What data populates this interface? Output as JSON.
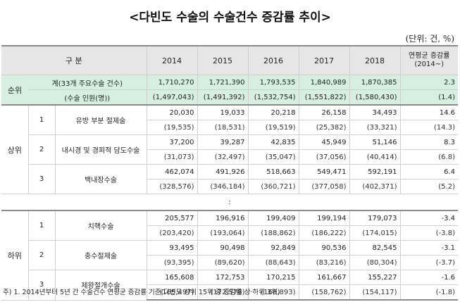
{
  "title": "<다빈도 수술의 수술건수 증감률 추이>",
  "unit": "(단위: 건, %)",
  "header": {
    "category": "구 분",
    "years": [
      "2014",
      "2015",
      "2016",
      "2017",
      "2018"
    ],
    "avg_line1": "연평균 증감률",
    "avg_line2": "(2014~)"
  },
  "total": {
    "rank_label": "순위",
    "row1": {
      "name": "계(33개 주요수술 건수)",
      "values": [
        "1,710,270",
        "1,721,390",
        "1,793,535",
        "1,840,989",
        "1,870,385"
      ],
      "avg": "2.3"
    },
    "row2": {
      "name": "(수술 인원(명))",
      "values": [
        "(1,497,043)",
        "(1,491,392)",
        "(1,532,754)",
        "(1,551,822)",
        "(1,580,430)"
      ],
      "avg": "(1.4)"
    }
  },
  "upper": {
    "group": "상위",
    "rows": [
      {
        "rank": "1",
        "name": "유방 부분 절제술",
        "values": [
          "20,030",
          "19,033",
          "20,218",
          "26,158",
          "34,493"
        ],
        "avg": "14.6",
        "sub_values": [
          "(19,535)",
          "(18,531)",
          "(19,519)",
          "(25,382)",
          "(33,321)"
        ],
        "sub_avg": "(14.3)"
      },
      {
        "rank": "2",
        "name": "내시경 및 경피적 담도수술",
        "values": [
          "37,200",
          "39,287",
          "42,835",
          "45,949",
          "51,146"
        ],
        "avg": "8.3",
        "sub_values": [
          "(31,073)",
          "(32,497)",
          "(35,047)",
          "(37,056)",
          "(40,414)"
        ],
        "sub_avg": "(6.8)"
      },
      {
        "rank": "3",
        "name": "백내장수술",
        "values": [
          "462,074",
          "491,926",
          "518,663",
          "549,471",
          "592,191"
        ],
        "avg": "6.4",
        "sub_values": [
          "(328,576)",
          "(346,184)",
          "(360,721)",
          "(377,058)",
          "(402,371)"
        ],
        "sub_avg": "(5.2)"
      }
    ]
  },
  "gap_mark": ":",
  "lower": {
    "group": "하위",
    "rows": [
      {
        "rank": "1",
        "name": "치핵수술",
        "values": [
          "205,577",
          "196,916",
          "199,409",
          "199,194",
          "179,073"
        ],
        "avg": "-3.4",
        "sub_values": [
          "(203,420)",
          "(193,064)",
          "(188,862)",
          "(186,222)",
          "(174,015)"
        ],
        "sub_avg": "(-3.8)"
      },
      {
        "rank": "2",
        "name": "충수절제술",
        "values": [
          "93,495",
          "90,498",
          "92,849",
          "90,536",
          "82,545"
        ],
        "avg": "-3.1",
        "sub_values": [
          "(93,395)",
          "(89,620)",
          "(88,643)",
          "(83,216)",
          "(80,304)"
        ],
        "sub_avg": "(-3.7)"
      },
      {
        "rank": "3",
        "name": "제왕절개수술",
        "values": [
          "165,608",
          "172,753",
          "170,215",
          "161,667",
          "155,227"
        ],
        "avg": "-1.6",
        "sub_values": [
          "(165,497)",
          "(172,578)",
          "(168,893)",
          "(158,762)",
          "(154,117)"
        ],
        "sub_avg": "(-1.8)"
      }
    ]
  },
  "footnote": "주) 1. 2014년부터 5년 간 수술건수 연평균 증감률 기준(다빈도 상위 15위 중 증감률 상·하위 3위)",
  "colors": {
    "header_bg": "#e6e6e6",
    "total_bg": "#d6efe1",
    "rule": "#8a8a8a"
  }
}
